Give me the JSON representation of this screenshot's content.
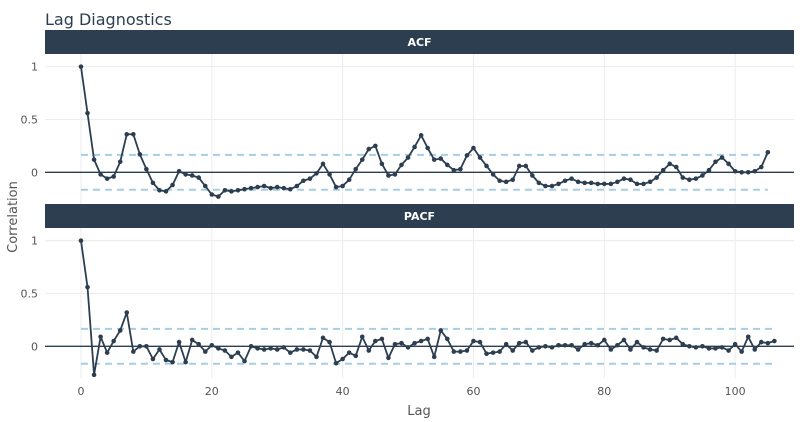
{
  "chart_data": {
    "type": "line",
    "title": "Lag Diagnostics",
    "xlabel": "Lag",
    "ylabel": "Correlation",
    "xlim": [
      -5.5,
      109
    ],
    "x_ticks": [
      0,
      20,
      40,
      60,
      80,
      100
    ],
    "grid": true,
    "colors": {
      "line": "#2c3e50",
      "point": "#2c3e50",
      "zero_line": "#2c3e50",
      "conf_band": "#a6cee3",
      "strip_bg": "#2c3e50"
    },
    "panels": [
      {
        "name": "ACF",
        "ylim": [
          -0.3,
          1.12
        ],
        "y_ticks": [
          0,
          0.5,
          1
        ],
        "conf_band": 0.165,
        "values": [
          1.0,
          0.56,
          0.12,
          -0.02,
          -0.06,
          -0.04,
          0.1,
          0.36,
          0.36,
          0.17,
          0.03,
          -0.1,
          -0.17,
          -0.18,
          -0.12,
          0.01,
          -0.02,
          -0.03,
          -0.05,
          -0.13,
          -0.21,
          -0.23,
          -0.17,
          -0.18,
          -0.17,
          -0.16,
          -0.15,
          -0.14,
          -0.13,
          -0.15,
          -0.14,
          -0.15,
          -0.16,
          -0.13,
          -0.08,
          -0.06,
          -0.01,
          0.08,
          -0.02,
          -0.14,
          -0.13,
          -0.07,
          0.03,
          0.12,
          0.22,
          0.25,
          0.08,
          -0.03,
          -0.02,
          0.07,
          0.14,
          0.24,
          0.35,
          0.23,
          0.12,
          0.13,
          0.07,
          0.02,
          0.03,
          0.16,
          0.23,
          0.14,
          0.06,
          -0.02,
          -0.08,
          -0.09,
          -0.07,
          0.06,
          0.06,
          -0.03,
          -0.1,
          -0.13,
          -0.13,
          -0.11,
          -0.08,
          -0.06,
          -0.09,
          -0.1,
          -0.1,
          -0.11,
          -0.11,
          -0.11,
          -0.09,
          -0.06,
          -0.07,
          -0.11,
          -0.11,
          -0.09,
          -0.05,
          0.02,
          0.08,
          0.05,
          -0.05,
          -0.07,
          -0.06,
          -0.03,
          0.02,
          0.1,
          0.14,
          0.08,
          0.01,
          0.0,
          0.0,
          0.01,
          0.05,
          0.19
        ]
      },
      {
        "name": "PACF",
        "ylim": [
          -0.3,
          1.12
        ],
        "y_ticks": [
          0,
          0.5,
          1
        ],
        "conf_band": 0.165,
        "values": [
          1.0,
          0.56,
          -0.27,
          0.09,
          -0.06,
          0.05,
          0.15,
          0.32,
          -0.05,
          0.0,
          0.0,
          -0.12,
          -0.03,
          -0.13,
          -0.15,
          0.04,
          -0.15,
          0.06,
          0.02,
          -0.05,
          0.01,
          -0.02,
          -0.04,
          -0.1,
          -0.06,
          -0.14,
          0.0,
          -0.02,
          -0.03,
          -0.02,
          -0.03,
          -0.01,
          -0.06,
          -0.03,
          -0.03,
          -0.04,
          -0.1,
          0.08,
          0.04,
          -0.16,
          -0.12,
          -0.06,
          -0.09,
          0.09,
          -0.04,
          0.05,
          0.07,
          -0.11,
          0.02,
          0.03,
          -0.01,
          0.03,
          0.05,
          0.07,
          -0.1,
          0.15,
          0.07,
          -0.05,
          -0.05,
          -0.04,
          0.05,
          0.04,
          -0.07,
          -0.06,
          -0.05,
          0.02,
          -0.04,
          0.03,
          0.04,
          -0.04,
          -0.01,
          0.0,
          -0.01,
          0.01,
          0.01,
          0.01,
          -0.03,
          0.02,
          0.03,
          0.01,
          0.06,
          -0.03,
          0.01,
          0.06,
          -0.03,
          0.04,
          -0.01,
          -0.03,
          -0.04,
          0.07,
          0.06,
          0.08,
          0.02,
          0.0,
          -0.01,
          0.0,
          -0.02,
          -0.02,
          -0.01,
          -0.04,
          0.02,
          -0.05,
          0.09,
          -0.03,
          0.04,
          0.03,
          0.05
        ]
      }
    ]
  }
}
